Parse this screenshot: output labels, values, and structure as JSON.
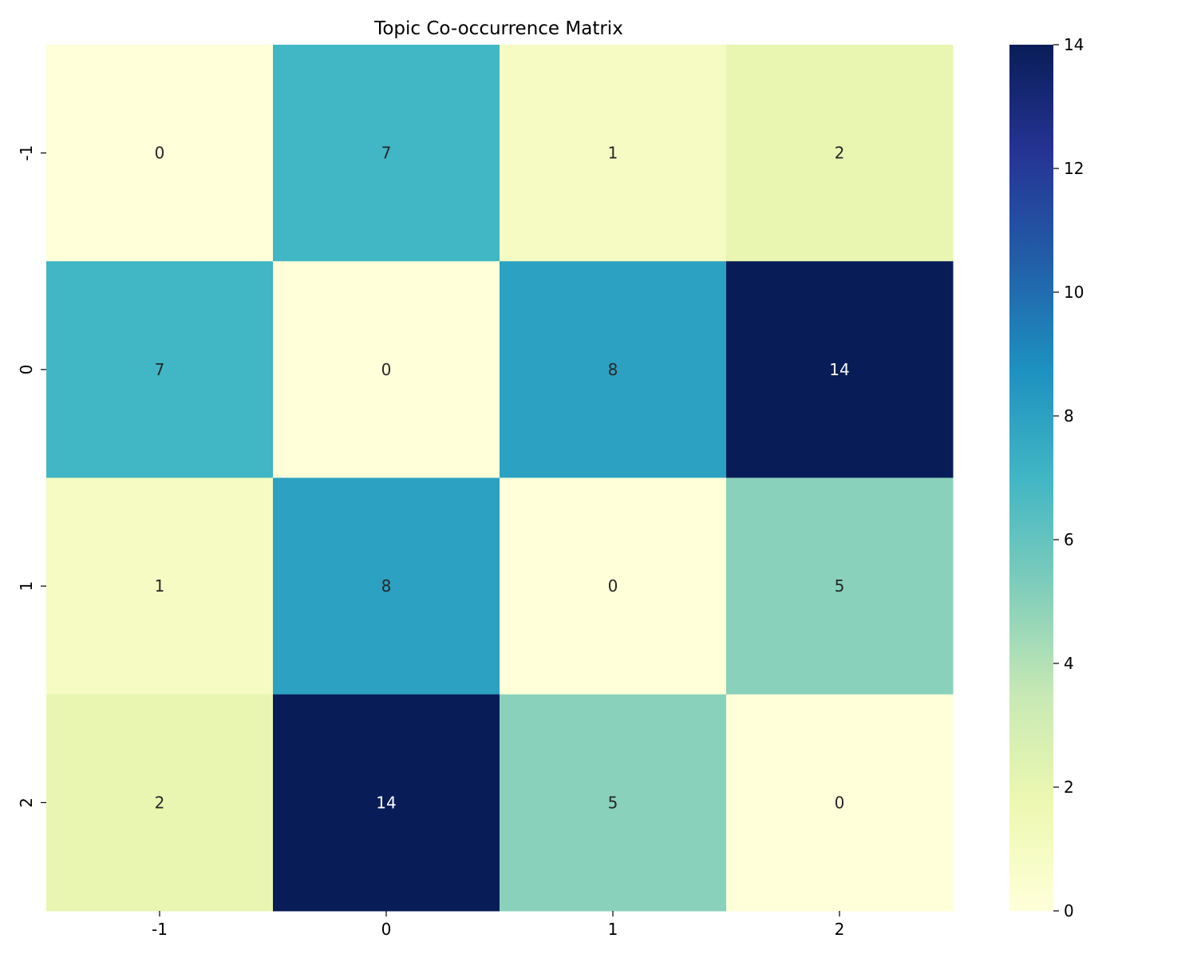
{
  "chart_data": {
    "type": "heatmap",
    "title": "Topic Co-occurrence Matrix",
    "xlabel": "",
    "ylabel": "",
    "x_categories": [
      "-1",
      "0",
      "1",
      "2"
    ],
    "y_categories": [
      "-1",
      "0",
      "1",
      "2"
    ],
    "values": [
      [
        0,
        7,
        1,
        2
      ],
      [
        7,
        0,
        8,
        14
      ],
      [
        1,
        8,
        0,
        5
      ],
      [
        2,
        14,
        5,
        0
      ]
    ],
    "colorbar": {
      "min": 0,
      "max": 14,
      "ticks": [
        0,
        2,
        4,
        6,
        8,
        10,
        12,
        14
      ],
      "colormap": "YlGnBu"
    },
    "colormap_stops": [
      "#ffffd9",
      "#edf8b1",
      "#c7e9b4",
      "#7fcdbb",
      "#41b6c4",
      "#1d91c0",
      "#225ea8",
      "#253494",
      "#081d58"
    ],
    "annotation_light_color": "#ffffff",
    "annotation_dark_color": "#262626"
  }
}
